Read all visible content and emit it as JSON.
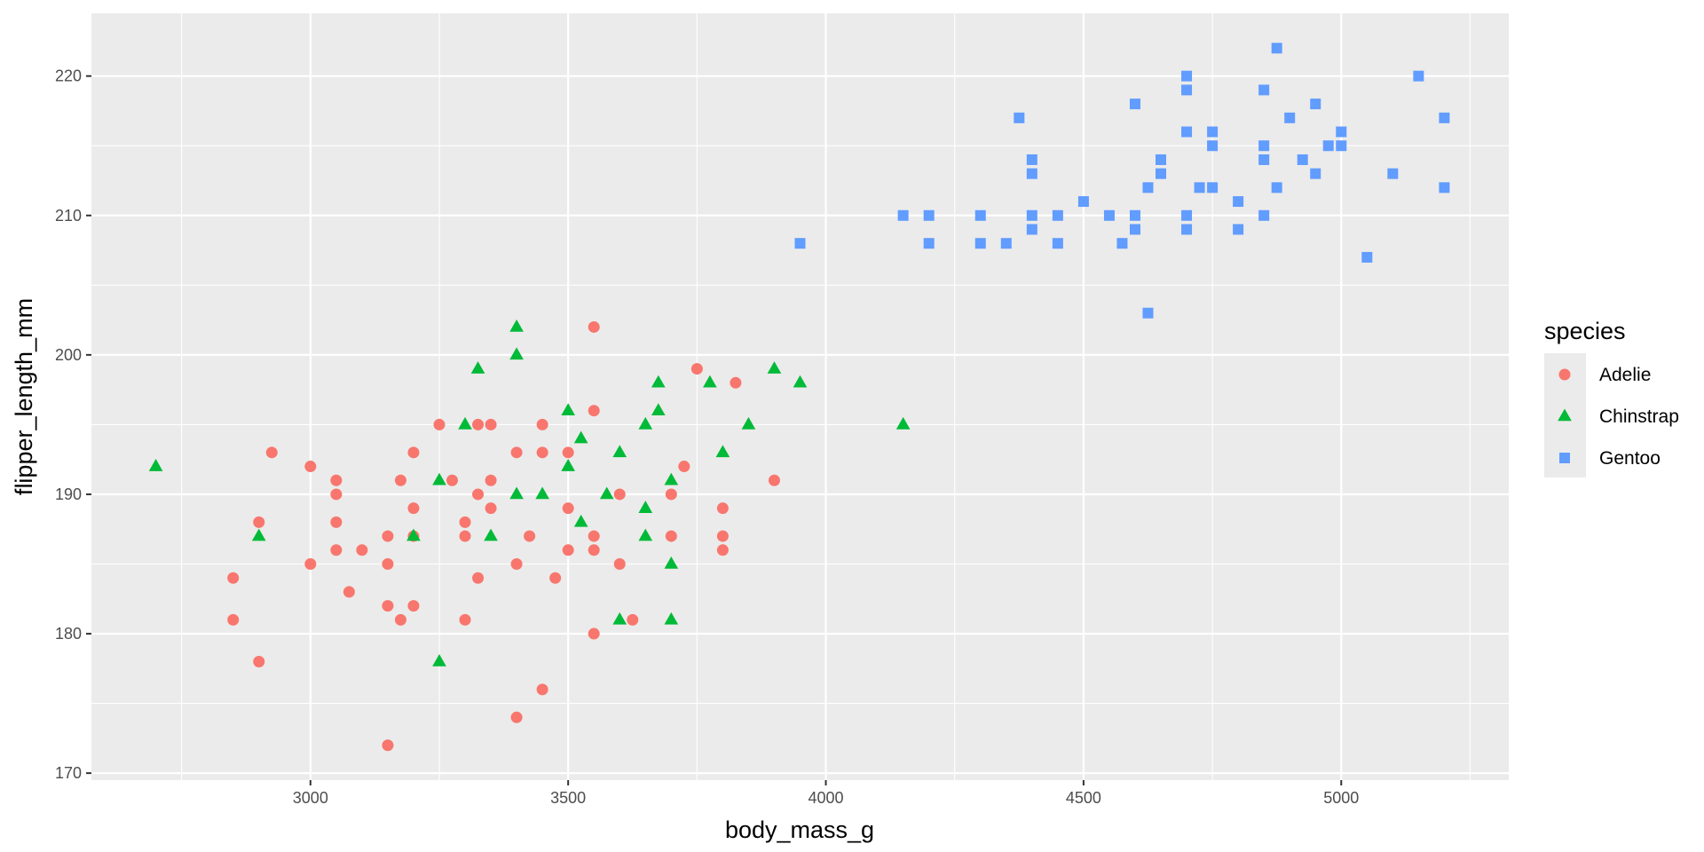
{
  "chart_data": {
    "type": "scatter",
    "title": "",
    "xlabel": "body_mass_g",
    "ylabel": "flipper_length_mm",
    "xlim": [
      2575,
      5325
    ],
    "ylim": [
      169.5,
      224.5
    ],
    "x_ticks": [
      3000,
      3500,
      4000,
      4500,
      5000
    ],
    "y_ticks": [
      170,
      180,
      190,
      200,
      210,
      220
    ],
    "grid": true,
    "legend": {
      "title": "species",
      "position": "right"
    },
    "series": [
      {
        "name": "Adelie",
        "marker": "circle",
        "color": "#F8766D",
        "points": [
          [
            2850,
            184
          ],
          [
            2850,
            181
          ],
          [
            2900,
            188
          ],
          [
            2900,
            178
          ],
          [
            2925,
            193
          ],
          [
            3000,
            192
          ],
          [
            3000,
            185
          ],
          [
            3050,
            191
          ],
          [
            3050,
            190
          ],
          [
            3050,
            188
          ],
          [
            3050,
            186
          ],
          [
            3075,
            183
          ],
          [
            3100,
            186
          ],
          [
            3150,
            187
          ],
          [
            3150,
            185
          ],
          [
            3150,
            182
          ],
          [
            3150,
            172
          ],
          [
            3175,
            191
          ],
          [
            3175,
            181
          ],
          [
            3200,
            193
          ],
          [
            3200,
            189
          ],
          [
            3200,
            187
          ],
          [
            3200,
            182
          ],
          [
            3250,
            195
          ],
          [
            3275,
            191
          ],
          [
            3300,
            188
          ],
          [
            3300,
            187
          ],
          [
            3300,
            181
          ],
          [
            3325,
            195
          ],
          [
            3325,
            190
          ],
          [
            3325,
            184
          ],
          [
            3350,
            195
          ],
          [
            3350,
            191
          ],
          [
            3350,
            189
          ],
          [
            3400,
            193
          ],
          [
            3400,
            185
          ],
          [
            3400,
            174
          ],
          [
            3425,
            187
          ],
          [
            3450,
            195
          ],
          [
            3450,
            193
          ],
          [
            3450,
            176
          ],
          [
            3475,
            184
          ],
          [
            3500,
            193
          ],
          [
            3500,
            189
          ],
          [
            3500,
            186
          ],
          [
            3550,
            202
          ],
          [
            3550,
            196
          ],
          [
            3550,
            187
          ],
          [
            3550,
            186
          ],
          [
            3550,
            180
          ],
          [
            3600,
            190
          ],
          [
            3600,
            185
          ],
          [
            3625,
            181
          ],
          [
            3700,
            190
          ],
          [
            3700,
            187
          ],
          [
            3725,
            192
          ],
          [
            3750,
            199
          ],
          [
            3800,
            189
          ],
          [
            3800,
            187
          ],
          [
            3800,
            186
          ],
          [
            3825,
            198
          ],
          [
            3900,
            191
          ]
        ]
      },
      {
        "name": "Chinstrap",
        "marker": "triangle",
        "color": "#00BA38",
        "points": [
          [
            2700,
            192
          ],
          [
            2900,
            187
          ],
          [
            3200,
            187
          ],
          [
            3250,
            191
          ],
          [
            3250,
            178
          ],
          [
            3300,
            195
          ],
          [
            3325,
            199
          ],
          [
            3350,
            187
          ],
          [
            3400,
            202
          ],
          [
            3400,
            200
          ],
          [
            3400,
            190
          ],
          [
            3450,
            190
          ],
          [
            3500,
            196
          ],
          [
            3500,
            192
          ],
          [
            3525,
            194
          ],
          [
            3525,
            188
          ],
          [
            3575,
            190
          ],
          [
            3600,
            193
          ],
          [
            3600,
            181
          ],
          [
            3650,
            195
          ],
          [
            3650,
            189
          ],
          [
            3650,
            187
          ],
          [
            3675,
            198
          ],
          [
            3675,
            196
          ],
          [
            3700,
            191
          ],
          [
            3700,
            185
          ],
          [
            3700,
            181
          ],
          [
            3775,
            198
          ],
          [
            3800,
            193
          ],
          [
            3850,
            195
          ],
          [
            3900,
            199
          ],
          [
            3950,
            198
          ],
          [
            4150,
            195
          ]
        ]
      },
      {
        "name": "Gentoo",
        "marker": "square",
        "color": "#619CFF",
        "points": [
          [
            3950,
            208
          ],
          [
            4150,
            210
          ],
          [
            4200,
            210
          ],
          [
            4200,
            208
          ],
          [
            4300,
            210
          ],
          [
            4300,
            208
          ],
          [
            4350,
            208
          ],
          [
            4375,
            217
          ],
          [
            4400,
            214
          ],
          [
            4400,
            213
          ],
          [
            4400,
            210
          ],
          [
            4400,
            209
          ],
          [
            4450,
            210
          ],
          [
            4450,
            208
          ],
          [
            4500,
            211
          ],
          [
            4550,
            210
          ],
          [
            4575,
            208
          ],
          [
            4600,
            218
          ],
          [
            4600,
            210
          ],
          [
            4600,
            209
          ],
          [
            4625,
            212
          ],
          [
            4625,
            203
          ],
          [
            4650,
            214
          ],
          [
            4650,
            213
          ],
          [
            4700,
            220
          ],
          [
            4700,
            219
          ],
          [
            4700,
            216
          ],
          [
            4700,
            210
          ],
          [
            4700,
            209
          ],
          [
            4725,
            212
          ],
          [
            4750,
            216
          ],
          [
            4750,
            215
          ],
          [
            4750,
            212
          ],
          [
            4800,
            211
          ],
          [
            4800,
            209
          ],
          [
            4850,
            219
          ],
          [
            4850,
            215
          ],
          [
            4850,
            214
          ],
          [
            4850,
            210
          ],
          [
            4875,
            222
          ],
          [
            4875,
            212
          ],
          [
            4900,
            217
          ],
          [
            4925,
            214
          ],
          [
            4950,
            218
          ],
          [
            4950,
            213
          ],
          [
            4975,
            215
          ],
          [
            5000,
            216
          ],
          [
            5000,
            215
          ],
          [
            5050,
            207
          ],
          [
            5100,
            213
          ],
          [
            5150,
            220
          ],
          [
            5200,
            217
          ],
          [
            5200,
            212
          ]
        ]
      }
    ]
  }
}
